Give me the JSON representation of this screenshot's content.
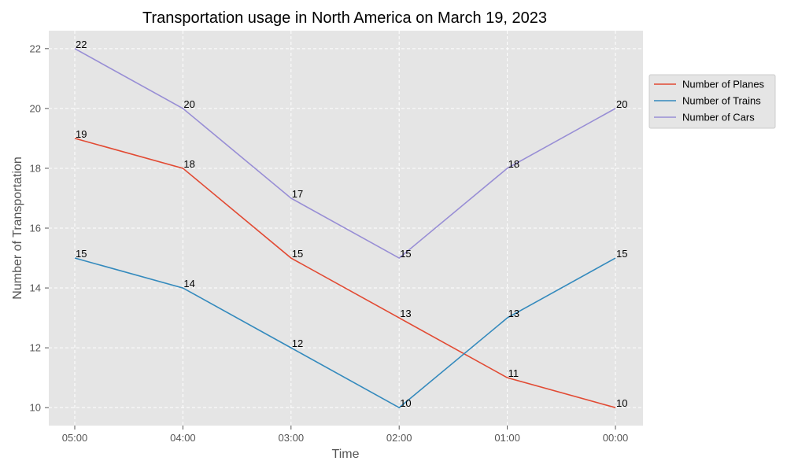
{
  "chart_data": {
    "type": "line",
    "title": "Transportation usage in North America on March 19, 2023",
    "xlabel": "Time",
    "ylabel": "Number of Transportation",
    "categories": [
      "05:00",
      "04:00",
      "03:00",
      "02:00",
      "01:00",
      "00:00"
    ],
    "ylim": [
      9.4,
      22.6
    ],
    "yticks": [
      10,
      12,
      14,
      16,
      18,
      20,
      22
    ],
    "grid": true,
    "legend_position": "right",
    "background_color": "#e5e5e5",
    "series": [
      {
        "name": "Number of Planes",
        "color": "#e24a33",
        "values": [
          19,
          18,
          15,
          13,
          11,
          10
        ]
      },
      {
        "name": "Number of Trains",
        "color": "#348abd",
        "values": [
          15,
          14,
          12,
          10,
          13,
          15
        ]
      },
      {
        "name": "Number of Cars",
        "color": "#988ed5",
        "values": [
          22,
          20,
          17,
          15,
          18,
          20
        ]
      }
    ]
  }
}
